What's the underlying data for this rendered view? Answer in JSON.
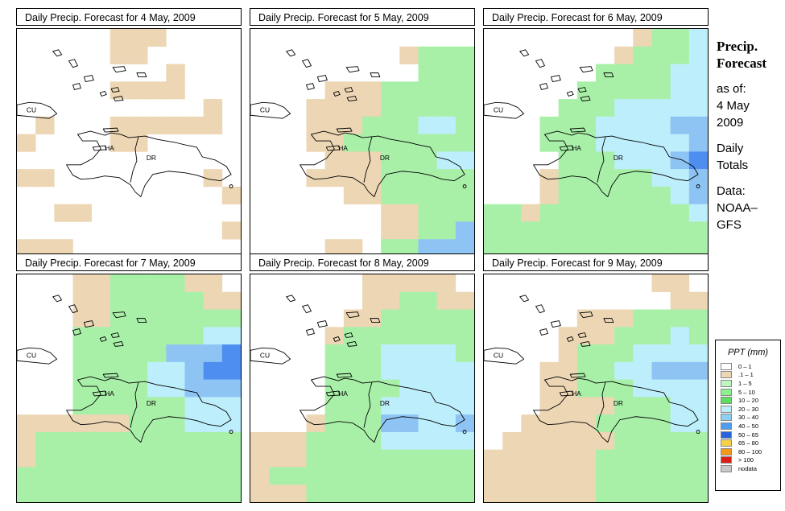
{
  "panels": [
    {
      "title": "Daily Precip. Forecast for  4 May, 2009",
      "grid": [
        "000001110000",
        "000001100000",
        "000000001000",
        "000001111000",
        "000000000010",
        "010001111110",
        "100001100000",
        "000000000000",
        "110000000010",
        "000000000001",
        "001100000000",
        "000000000001",
        "111000000000"
      ]
    },
    {
      "title": "Daily Precip. Forecast for  5 May, 2009",
      "grid": [
        "000000000000",
        "000000001222",
        "000000000222",
        "000011122222",
        "000111122222",
        "000111222332",
        "000112222222",
        "000011122233",
        "000111122222",
        "000001122222",
        "000000011222",
        "000000011224",
        "000011022444"
      ]
    },
    {
      "title": "Daily Precip. Forecast for  6 May, 2009",
      "grid": [
        "000000001223",
        "000000012223",
        "000000222233",
        "000002222233",
        "000022233333",
        "000222333344",
        "000222333334",
        "000022233345",
        "000122222334",
        "000122222234",
        "221222222223",
        "222222222222",
        "222222222222"
      ]
    },
    {
      "title": "Daily Precip. Forecast for  7 May, 2009",
      "grid": [
        "000112222110",
        "000112222211",
        "000112222222",
        "000222222233",
        "000222224445",
        "000222233455",
        "000222233444",
        "000222222333",
        "111111222333",
        "122222222222",
        "122222222222",
        "222222222222",
        "222222222222"
      ]
    },
    {
      "title": "Daily Precip. Forecast for  8 May, 2009",
      "grid": [
        "000000111110",
        "000000112211",
        "000001122222",
        "000012222222",
        "000022233332",
        "000022233333",
        "000022223333",
        "000022233333",
        "000122244334",
        "111222233333",
        "111222222222",
        "122222222222",
        "111222222222"
      ]
    },
    {
      "title": "Daily Precip. Forecast for  9 May, 2009",
      "grid": [
        "000000000110",
        "000000000011",
        "000001112222",
        "000011122232",
        "000012223333",
        "000112233444",
        "000112223333",
        "000111122233",
        "001111222233",
        "011111122222",
        "111111222222",
        "111111222222",
        "111111222222"
      ]
    }
  ],
  "country_labels": {
    "cuba": "CU",
    "haiti": "HA",
    "dr": "DR"
  },
  "info": {
    "title_line1": "Precip.",
    "title_line2": "Forecast",
    "asof_label": "as of:",
    "date_line1": "4 May",
    "date_line2": "2009",
    "totals_line1": "Daily",
    "totals_line2": "Totals",
    "data_line1": "Data:",
    "data_line2": "NOAA–",
    "data_line3": "GFS"
  },
  "legend": {
    "title": "PPT (mm)",
    "items": [
      {
        "label": "0 – 1",
        "color": "#ffffff"
      },
      {
        "label": ".1 – 1",
        "color": "#ecd6b4"
      },
      {
        "label": "1 – 5",
        "color": "#bff5bf"
      },
      {
        "label": "5 – 10",
        "color": "#8ef08e"
      },
      {
        "label": "10 – 20",
        "color": "#5ede5e"
      },
      {
        "label": "20 – 30",
        "color": "#bdeefb"
      },
      {
        "label": "30 – 40",
        "color": "#8ed0f4"
      },
      {
        "label": "40 – 50",
        "color": "#4d9ef0"
      },
      {
        "label": "50 – 65",
        "color": "#2862dc"
      },
      {
        "label": "65 – 80",
        "color": "#f5d24a"
      },
      {
        "label": "80 – 100",
        "color": "#f39a1a"
      },
      {
        "label": "> 100",
        "color": "#dc1e14"
      },
      {
        "label": "nodata",
        "color": "#c8c8c8"
      }
    ]
  },
  "map_colors": {
    "0": "#ffffff",
    "1": "#ecd6b4",
    "2": "#a8f0a8",
    "3": "#bdeefb",
    "4": "#8ec4f4",
    "5": "#4d8ef0"
  }
}
